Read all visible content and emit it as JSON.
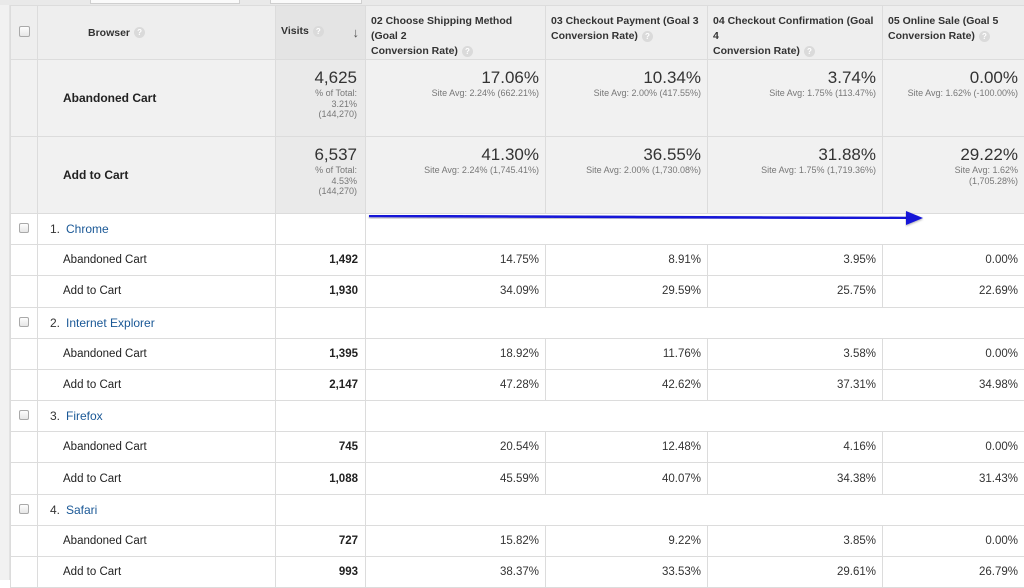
{
  "header": {
    "browser": "Browser",
    "visits": "Visits",
    "goals": [
      {
        "line1": "02 Choose Shipping Method (Goal 2",
        "line2": "Conversion Rate)"
      },
      {
        "line1": "03 Checkout Payment (Goal 3",
        "line2": "Conversion Rate)"
      },
      {
        "line1": "04 Checkout Confirmation (Goal 4",
        "line2": "Conversion Rate)"
      },
      {
        "line1": "05 Online Sale (Goal 5",
        "line2": "Conversion Rate)"
      }
    ]
  },
  "summary": [
    {
      "label": "Abandoned Cart",
      "visits": "4,625",
      "visits_sub1": "% of Total:",
      "visits_sub2": "3.21%",
      "visits_sub3": "(144,270)",
      "metrics": [
        {
          "value": "17.06%",
          "site_avg": "Site Avg: 2.24% (662.21%)"
        },
        {
          "value": "10.34%",
          "site_avg": "Site Avg: 2.00% (417.55%)"
        },
        {
          "value": "3.74%",
          "site_avg": "Site Avg: 1.75% (113.47%)"
        },
        {
          "value": "0.00%",
          "site_avg": "Site Avg: 1.62% (-100.00%)"
        }
      ]
    },
    {
      "label": "Add to Cart",
      "visits": "6,537",
      "visits_sub1": "% of Total:",
      "visits_sub2": "4.53%",
      "visits_sub3": "(144,270)",
      "metrics": [
        {
          "value": "41.30%",
          "site_avg": "Site Avg: 2.24% (1,745.41%)"
        },
        {
          "value": "36.55%",
          "site_avg": "Site Avg: 2.00% (1,730.08%)"
        },
        {
          "value": "31.88%",
          "site_avg": "Site Avg: 1.75% (1,719.36%)"
        },
        {
          "value": "29.22%",
          "site_avg": "Site Avg: 1.62%",
          "site_avg2": "(1,705.28%)"
        }
      ]
    }
  ],
  "groups": [
    {
      "num": "1.",
      "name": "Chrome",
      "rows": [
        {
          "label": "Abandoned Cart",
          "visits": "1,492",
          "m": [
            "14.75%",
            "8.91%",
            "3.95%",
            "0.00%"
          ]
        },
        {
          "label": "Add to Cart",
          "visits": "1,930",
          "m": [
            "34.09%",
            "29.59%",
            "25.75%",
            "22.69%"
          ]
        }
      ]
    },
    {
      "num": "2.",
      "name": "Internet Explorer",
      "rows": [
        {
          "label": "Abandoned Cart",
          "visits": "1,395",
          "m": [
            "18.92%",
            "11.76%",
            "3.58%",
            "0.00%"
          ]
        },
        {
          "label": "Add to Cart",
          "visits": "2,147",
          "m": [
            "47.28%",
            "42.62%",
            "37.31%",
            "34.98%"
          ]
        }
      ]
    },
    {
      "num": "3.",
      "name": "Firefox",
      "rows": [
        {
          "label": "Abandoned Cart",
          "visits": "745",
          "m": [
            "20.54%",
            "12.48%",
            "4.16%",
            "0.00%"
          ]
        },
        {
          "label": "Add to Cart",
          "visits": "1,088",
          "m": [
            "45.59%",
            "40.07%",
            "34.38%",
            "31.43%"
          ]
        }
      ]
    },
    {
      "num": "4.",
      "name": "Safari",
      "rows": [
        {
          "label": "Abandoned Cart",
          "visits": "727",
          "m": [
            "15.82%",
            "9.22%",
            "3.85%",
            "0.00%"
          ]
        },
        {
          "label": "Add to Cart",
          "visits": "993",
          "m": [
            "38.37%",
            "33.53%",
            "29.61%",
            "26.79%"
          ]
        }
      ]
    }
  ],
  "colors": {
    "link": "#1a5896",
    "annotation_arrow": "#1414d8"
  },
  "icons": {
    "help": "question-mark-circle-icon",
    "sort": "arrow-down-icon",
    "annotation": "right-arrow-annotation"
  }
}
